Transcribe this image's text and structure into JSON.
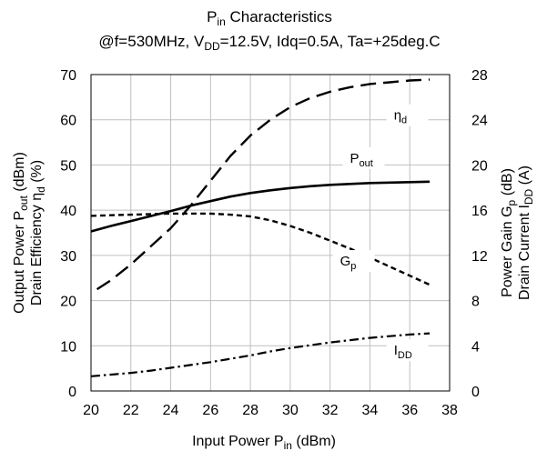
{
  "chart_data": {
    "type": "line",
    "title_line1": {
      "base": "P",
      "sub": "in",
      "rest": " Characteristics"
    },
    "title_line2": {
      "pre": "@f=530MHz, V",
      "sub": "DD",
      "rest": "=12.5V, Idq=0.5A, Ta=+25deg.C"
    },
    "xlabel": {
      "base": "Input Power  P",
      "sub": "in",
      "rest": " (dBm)"
    },
    "ylabel_left_outer": {
      "base": "Output Power P",
      "sub": "out",
      "rest": " (dBm)"
    },
    "ylabel_left_inner": {
      "base": "Drain Efficiency  η",
      "sub": "d",
      "rest": " (%)"
    },
    "ylabel_right_inner": {
      "base": "Power Gain  G",
      "sub": "p",
      "rest": " (dB)"
    },
    "ylabel_right_outer": {
      "base": "Drain Current  I",
      "sub": "DD",
      "rest": " (A)"
    },
    "x_range": [
      20,
      38
    ],
    "x_ticks": [
      "20",
      "22",
      "24",
      "26",
      "28",
      "30",
      "32",
      "34",
      "36",
      "38"
    ],
    "y_left_range": [
      0,
      70
    ],
    "y_left_ticks": [
      "0",
      "10",
      "20",
      "30",
      "40",
      "50",
      "60",
      "70"
    ],
    "y_right_range": [
      0,
      28
    ],
    "y_right_ticks": [
      "0",
      "4",
      "8",
      "12",
      "16",
      "20",
      "24",
      "28"
    ],
    "grid": true,
    "series": [
      {
        "name": {
          "base": "P",
          "sub": "out"
        },
        "axis": "left",
        "dash": "solid",
        "label_at": [
          33,
          50.5
        ],
        "x": [
          20,
          21,
          22,
          23,
          24,
          25,
          26,
          27,
          28,
          29,
          30,
          31,
          32,
          33,
          34,
          35,
          36,
          37
        ],
        "y": [
          35.3,
          36.5,
          37.6,
          38.7,
          39.8,
          41.0,
          42.0,
          43.0,
          43.8,
          44.4,
          44.9,
          45.3,
          45.6,
          45.8,
          46.0,
          46.1,
          46.2,
          46.3
        ]
      },
      {
        "name": {
          "base": "η",
          "sub": "d"
        },
        "axis": "left",
        "dash": "long-dash",
        "label_at": [
          35.2,
          60
        ],
        "x": [
          20.3,
          21,
          22,
          23,
          24,
          25,
          26,
          27,
          28,
          29,
          30,
          31,
          32,
          33,
          34,
          35,
          36,
          37
        ],
        "y": [
          22.5,
          24.5,
          28.0,
          32.0,
          36.0,
          41.0,
          46.5,
          52.0,
          56.5,
          60.0,
          62.8,
          64.8,
          66.2,
          67.2,
          67.9,
          68.3,
          68.7,
          68.9
        ]
      },
      {
        "name": {
          "base": "G",
          "sub": "p"
        },
        "axis": "right",
        "dash": "short-dash",
        "label_at": [
          32.5,
          11.1
        ],
        "x": [
          20,
          21,
          22,
          23,
          24,
          25,
          26,
          27,
          28,
          29,
          30,
          31,
          32,
          33,
          34,
          35,
          36,
          37
        ],
        "y": [
          15.5,
          15.55,
          15.6,
          15.65,
          15.7,
          15.7,
          15.7,
          15.6,
          15.45,
          15.1,
          14.6,
          14.0,
          13.3,
          12.6,
          11.8,
          11.0,
          10.2,
          9.4
        ]
      },
      {
        "name": {
          "base": "I",
          "sub": "DD"
        },
        "axis": "right",
        "dash": "dash-dot",
        "label_at": [
          35.2,
          3.2
        ],
        "x": [
          20,
          21,
          22,
          23,
          24,
          25,
          26,
          27,
          28,
          29,
          30,
          31,
          32,
          33,
          34,
          35,
          36,
          37
        ],
        "y": [
          1.3,
          1.45,
          1.6,
          1.8,
          2.05,
          2.3,
          2.55,
          2.85,
          3.15,
          3.5,
          3.8,
          4.05,
          4.3,
          4.5,
          4.7,
          4.85,
          5.0,
          5.1
        ]
      }
    ]
  }
}
